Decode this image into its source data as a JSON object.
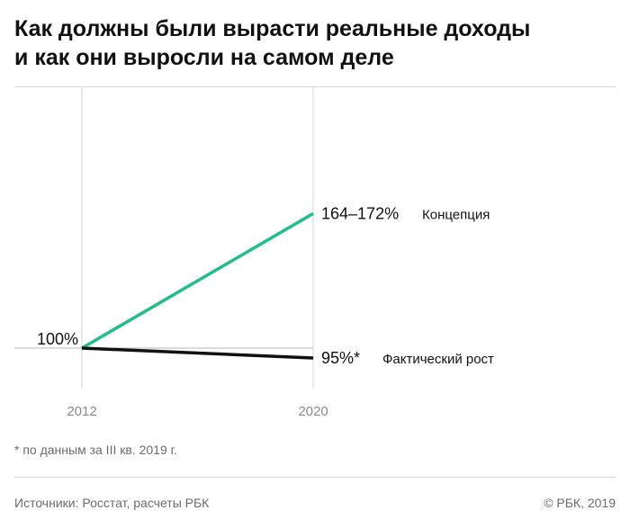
{
  "title": {
    "line1": "Как должны были вырасти реальные доходы",
    "line2": "и как они выросли на самом деле"
  },
  "footnote": "* по данным за III кв. 2019 г.",
  "source": "Источники: Росстат, расчеты РБК",
  "copyright": "© РБК, 2019",
  "chart_data": {
    "type": "line",
    "x": [
      "2012",
      "2020"
    ],
    "start_label": "100%",
    "baseline": 100,
    "series": [
      {
        "name": "Концепция",
        "values": [
          100,
          168
        ],
        "end_label": "164–172%",
        "color": "#1fbf86"
      },
      {
        "name": "Фактический рост",
        "values": [
          100,
          95
        ],
        "end_label": "95%*",
        "color": "#111111"
      }
    ],
    "grid": true
  }
}
